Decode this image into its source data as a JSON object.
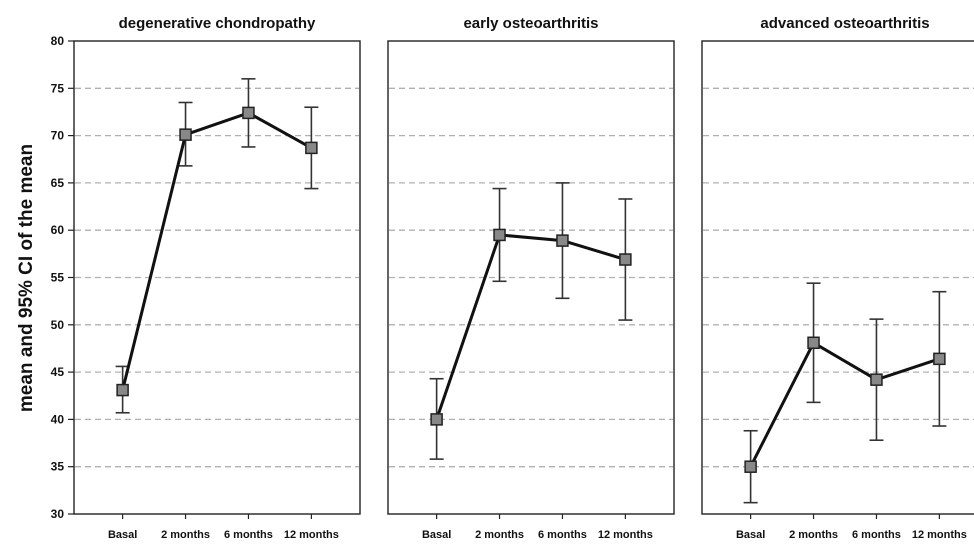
{
  "ylabel": "mean and 95% CI of the mean",
  "chart_data": {
    "type": "line",
    "ylim": [
      30,
      80
    ],
    "yticks": [
      30,
      35,
      40,
      45,
      50,
      55,
      60,
      65,
      70,
      75,
      80
    ],
    "ytick_labels": [
      "30",
      "35",
      "40",
      "45",
      "50",
      "55",
      "60",
      "65",
      "70",
      "75",
      "80"
    ],
    "categories": [
      "Basal",
      "2 months",
      "6 months",
      "12 months"
    ],
    "grid": "horizontal dashed",
    "colors": {
      "line": "#111111",
      "marker_fill": "#888888",
      "grid": "#b0b0b0"
    },
    "panels": [
      {
        "title": "degenerative chondropathy",
        "values": [
          43.1,
          70.1,
          72.4,
          68.7
        ],
        "ci_lower": [
          40.7,
          66.8,
          68.8,
          64.4
        ],
        "ci_upper": [
          45.6,
          73.5,
          76.0,
          73.0
        ]
      },
      {
        "title": "early osteoarthritis",
        "values": [
          40.0,
          59.5,
          58.9,
          56.9
        ],
        "ci_lower": [
          35.8,
          54.6,
          52.8,
          50.5
        ],
        "ci_upper": [
          44.3,
          64.4,
          65.0,
          63.3
        ]
      },
      {
        "title": "advanced osteoarthritis",
        "values": [
          35.0,
          48.1,
          44.2,
          46.4
        ],
        "ci_lower": [
          31.2,
          41.8,
          37.8,
          39.3
        ],
        "ci_upper": [
          38.8,
          54.4,
          50.6,
          53.5
        ]
      }
    ]
  }
}
